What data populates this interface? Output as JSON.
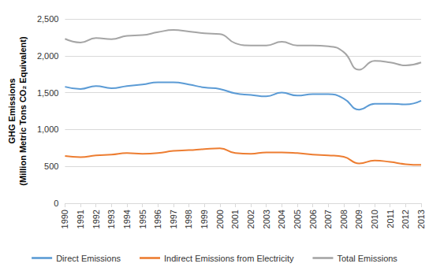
{
  "chart_data": {
    "type": "line",
    "y_label": "GHG Emissions\n(Million Metric Tons CO₂ Equivalent)",
    "categories": [
      "1990",
      "1991",
      "1992",
      "1993",
      "1994",
      "1995",
      "1996",
      "1997",
      "1998",
      "1999",
      "2000",
      "2001",
      "2002",
      "2003",
      "2004",
      "2005",
      "2006",
      "2007",
      "2008",
      "2009",
      "2010",
      "2011",
      "2012",
      "2013"
    ],
    "series": [
      {
        "name": "Direct Emissions",
        "color": "#5b9bd5",
        "values": [
          1580,
          1550,
          1590,
          1560,
          1590,
          1610,
          1640,
          1640,
          1610,
          1570,
          1550,
          1490,
          1470,
          1450,
          1500,
          1460,
          1480,
          1480,
          1420,
          1270,
          1350,
          1350,
          1340,
          1390
        ]
      },
      {
        "name": "Indirect Emissions from Electricity",
        "color": "#ed7d31",
        "values": [
          640,
          625,
          650,
          660,
          680,
          670,
          680,
          710,
          720,
          735,
          745,
          680,
          670,
          690,
          690,
          680,
          660,
          650,
          630,
          540,
          580,
          560,
          530,
          520
        ]
      },
      {
        "name": "Total Emissions",
        "color": "#a5a5a5",
        "values": [
          2230,
          2180,
          2240,
          2225,
          2270,
          2280,
          2320,
          2350,
          2330,
          2305,
          2295,
          2170,
          2140,
          2140,
          2190,
          2140,
          2140,
          2130,
          2050,
          1810,
          1930,
          1910,
          1870,
          1910
        ]
      }
    ],
    "ylim": [
      0,
      2500
    ],
    "yticks": [
      0,
      500,
      {
        "value": 1000,
        "label": "1,000"
      },
      {
        "value": 1500,
        "label": "1,500"
      },
      {
        "value": 2000,
        "label": "2,000"
      },
      {
        "value": 2500,
        "label": "2,500"
      }
    ],
    "grid": true,
    "legend": "bottom",
    "marker": "none"
  }
}
